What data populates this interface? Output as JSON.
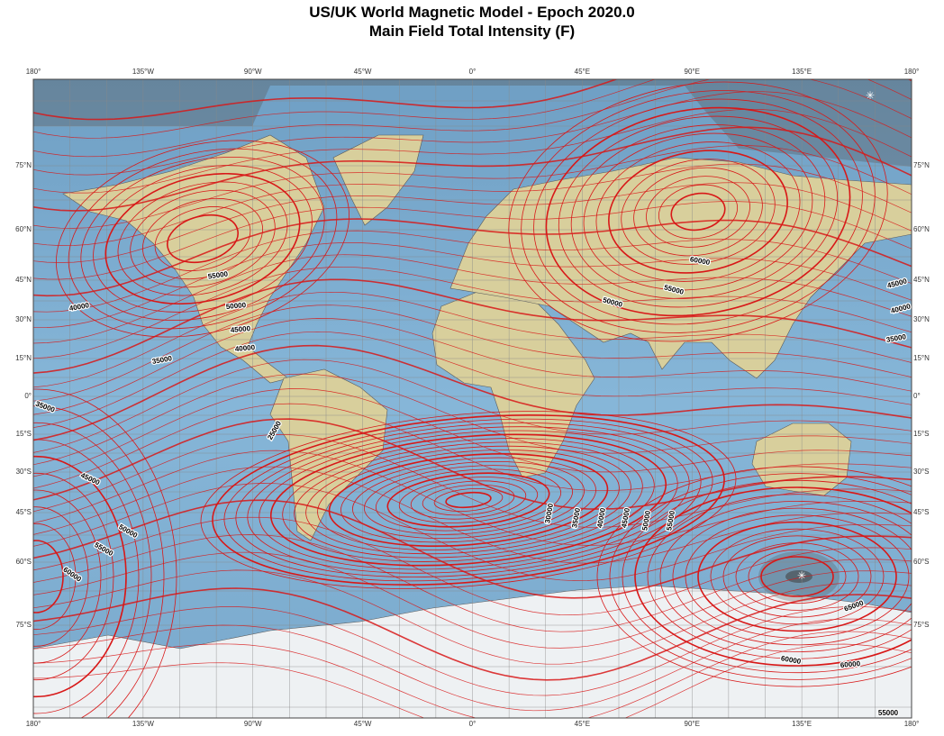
{
  "map": {
    "title": "US/UK World Magnetic Model - Epoch 2020.0",
    "subtitle": "Main Field Total Intensity (F)",
    "longitude_labels": [
      "180°",
      "135°W",
      "90°W",
      "45°W",
      "0°",
      "45°E",
      "90°E",
      "135°E",
      "180°"
    ],
    "latitude_labels": [
      "75°N",
      "60°N",
      "45°N",
      "30°N",
      "15°N",
      "0°",
      "15°S",
      "30°S",
      "45°S",
      "60°S",
      "75°S"
    ],
    "contour_labels": [
      "55000",
      "50000",
      "45000",
      "40000",
      "40000",
      "35000",
      "35000",
      "25000",
      "45000",
      "50000",
      "55000",
      "60000",
      "60000",
      "50000",
      "55000",
      "45000",
      "40000",
      "35000",
      "30000",
      "35000",
      "40000",
      "45000",
      "50000",
      "55000",
      "65000",
      "60000",
      "60000",
      "55000"
    ]
  }
}
